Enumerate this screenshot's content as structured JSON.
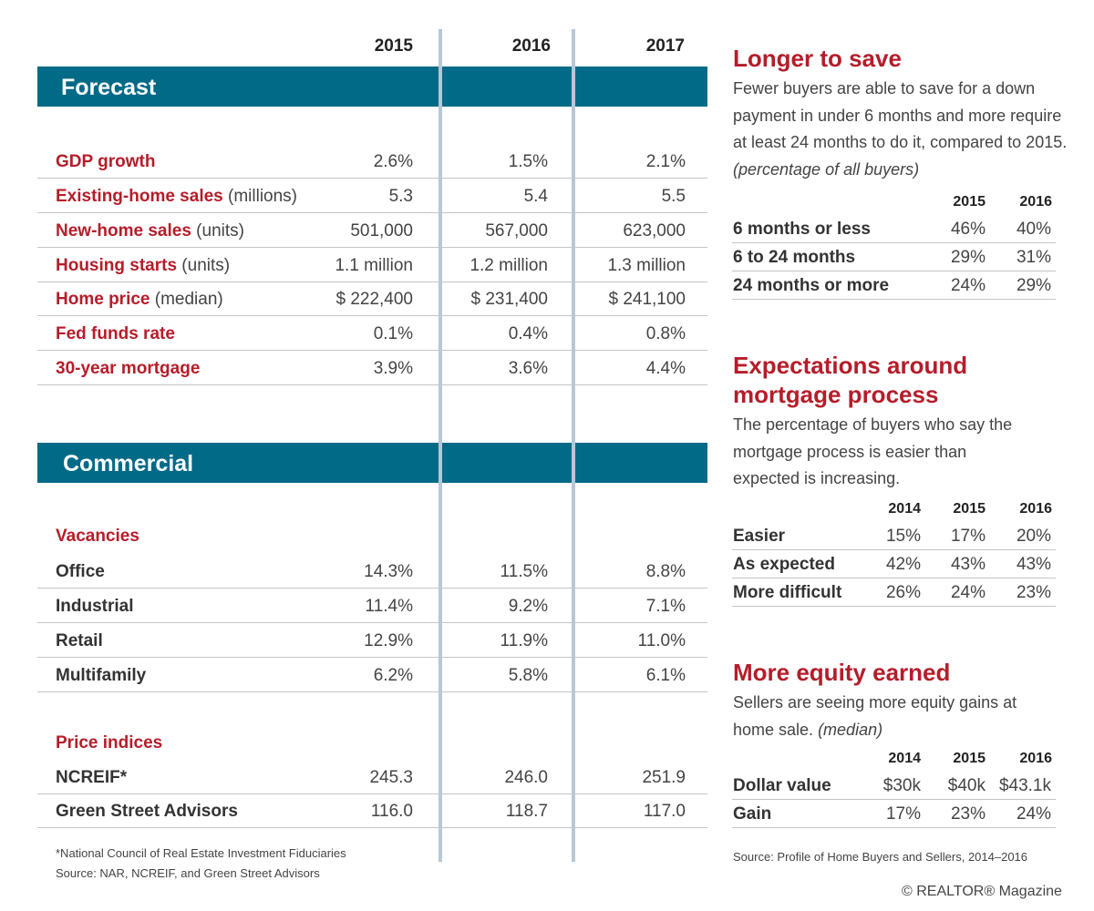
{
  "years": [
    "2015",
    "2016",
    "2017"
  ],
  "forecast": {
    "title": "Forecast",
    "rows": [
      {
        "key": "GDP growth",
        "unit": "",
        "values": [
          "2.6%",
          "1.5%",
          "2.1%"
        ]
      },
      {
        "key": "Existing-home sales",
        "unit": " (millions)",
        "values": [
          "5.3",
          "5.4",
          "5.5"
        ]
      },
      {
        "key": "New-home sales",
        "unit": " (units)",
        "values": [
          "501,000",
          "567,000",
          "623,000"
        ]
      },
      {
        "key": "Housing starts",
        "unit": " (units)",
        "values": [
          "1.1 million",
          "1.2 million",
          "1.3 million"
        ]
      },
      {
        "key": "Home price",
        "unit": " (median)",
        "values": [
          "$ 222,400",
          "$ 231,400",
          "$ 241,100"
        ]
      },
      {
        "key": "Fed funds rate",
        "unit": "",
        "values": [
          "0.1%",
          "0.4%",
          "0.8%"
        ]
      },
      {
        "key": "30-year mortgage",
        "unit": "",
        "values": [
          "3.9%",
          "3.6%",
          "4.4%"
        ]
      }
    ]
  },
  "commercial": {
    "title": "Commercial",
    "vacancies_label": "Vacancies",
    "vacancies": [
      {
        "label": "Office",
        "values": [
          "14.3%",
          "11.5%",
          "8.8%"
        ]
      },
      {
        "label": "Industrial",
        "values": [
          "11.4%",
          "9.2%",
          "7.1%"
        ]
      },
      {
        "label": "Retail",
        "values": [
          "12.9%",
          "11.9%",
          "11.0%"
        ]
      },
      {
        "label": "Multifamily",
        "values": [
          "6.2%",
          "5.8%",
          "6.1%"
        ]
      }
    ],
    "price_label": "Price indices",
    "prices": [
      {
        "label": "NCREIF*",
        "values": [
          "245.3",
          "246.0",
          "251.9"
        ]
      },
      {
        "label": "Green Street Advisors",
        "values": [
          "116.0",
          "118.7",
          "117.0"
        ]
      }
    ]
  },
  "footnotes": {
    "line1": "*National Council of Real Estate Investment Fiduciaries",
    "line2": "Source: NAR, NCREIF, and Green Street Advisors"
  },
  "save": {
    "title": "Longer to save",
    "desc": "Fewer buyers are able to save for a down payment in under 6 months and more require at least 24 months to do it, compared to 2015. ",
    "desc_em": "(percentage of all buyers)",
    "years": [
      "2015",
      "2016"
    ],
    "rows": [
      {
        "label": "6 months or less",
        "values": [
          "46%",
          "40%"
        ]
      },
      {
        "label": "6 to 24 months",
        "values": [
          "29%",
          "31%"
        ]
      },
      {
        "label": "24 months or more",
        "values": [
          "24%",
          "29%"
        ]
      }
    ]
  },
  "mortgage": {
    "title_line1": "Expectations around",
    "title_line2": "mortgage process",
    "desc": "The percentage of buyers who say the mortgage process is easier than expected is increasing.",
    "years": [
      "2014",
      "2015",
      "2016"
    ],
    "rows": [
      {
        "label": "Easier",
        "values": [
          "15%",
          "17%",
          "20%"
        ]
      },
      {
        "label": "As expected",
        "values": [
          "42%",
          "43%",
          "43%"
        ]
      },
      {
        "label": "More difficult",
        "values": [
          "26%",
          "24%",
          "23%"
        ]
      }
    ]
  },
  "equity": {
    "title": "More equity earned",
    "desc": "Sellers are seeing more equity gains at home sale. ",
    "desc_em": "(median)",
    "years": [
      "2014",
      "2015",
      "2016"
    ],
    "rows": [
      {
        "label": "Dollar value",
        "values": [
          "$30k",
          "$40k",
          "$43.1k"
        ]
      },
      {
        "label": "Gain",
        "values": [
          "17%",
          "23%",
          "24%"
        ]
      }
    ]
  },
  "source_right": "Source: Profile of Home Buyers and Sellers,  2014–2016",
  "copyright": "© REALTOR® Magazine"
}
